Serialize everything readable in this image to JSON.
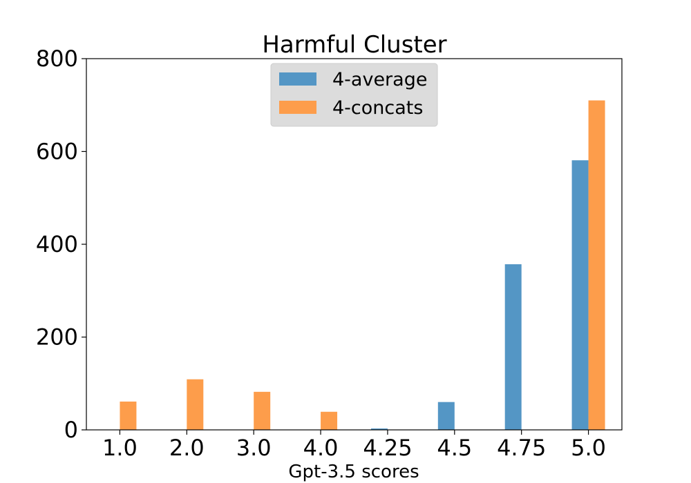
{
  "chart_data": {
    "type": "bar",
    "title": "Harmful Cluster",
    "xlabel": "Gpt-3.5 scores",
    "ylabel": "",
    "categories": [
      "1.0",
      "2.0",
      "3.0",
      "4.0",
      "4.25",
      "4.5",
      "4.75",
      "5.0"
    ],
    "series": [
      {
        "name": "4-average",
        "color": "#5496c5",
        "values": [
          0,
          0,
          0,
          0,
          3,
          60,
          357,
          581
        ]
      },
      {
        "name": "4-concats",
        "color": "#fd9d4b",
        "values": [
          61,
          109,
          82,
          39,
          0,
          0,
          0,
          710
        ]
      }
    ],
    "ylim": [
      0,
      800
    ],
    "yticks": [
      0,
      200,
      400,
      600,
      800
    ],
    "grid": false,
    "legend_position": "top-center"
  }
}
